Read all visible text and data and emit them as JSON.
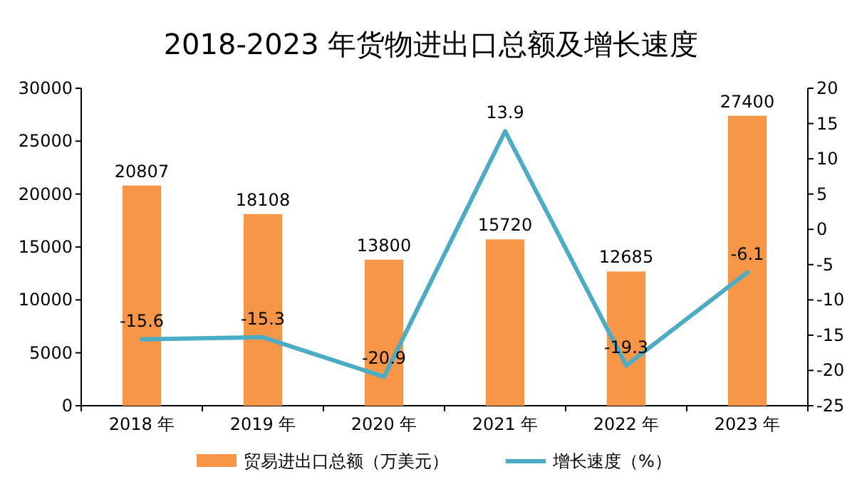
{
  "chart_data": {
    "type": "bar",
    "title": "2018-2023 年货物进出口总额及增长速度",
    "categories": [
      "2018 年",
      "2019 年",
      "2020 年",
      "2021 年",
      "2022 年",
      "2023 年"
    ],
    "series": [
      {
        "name": "贸易进出口总额（万美元）",
        "type": "bar",
        "color": "#f79646",
        "values": [
          20807,
          18108,
          13800,
          15720,
          12685,
          27400
        ]
      },
      {
        "name": "增长速度（%）",
        "type": "line",
        "axis": "y2",
        "color": "#4bacc6",
        "values": [
          -15.6,
          -15.3,
          -20.9,
          13.9,
          -19.3,
          -6.1
        ]
      }
    ],
    "ylim": [
      0,
      30000
    ],
    "yticks": [
      0,
      5000,
      10000,
      15000,
      20000,
      25000,
      30000
    ],
    "y2lim": [
      -25,
      20
    ],
    "y2ticks": [
      -25,
      -20,
      -15,
      -10,
      -5,
      0,
      5,
      10,
      15,
      20
    ],
    "data_labels": true,
    "grid": false,
    "legend": "bottom",
    "marker": "none",
    "line_style": "solid"
  }
}
